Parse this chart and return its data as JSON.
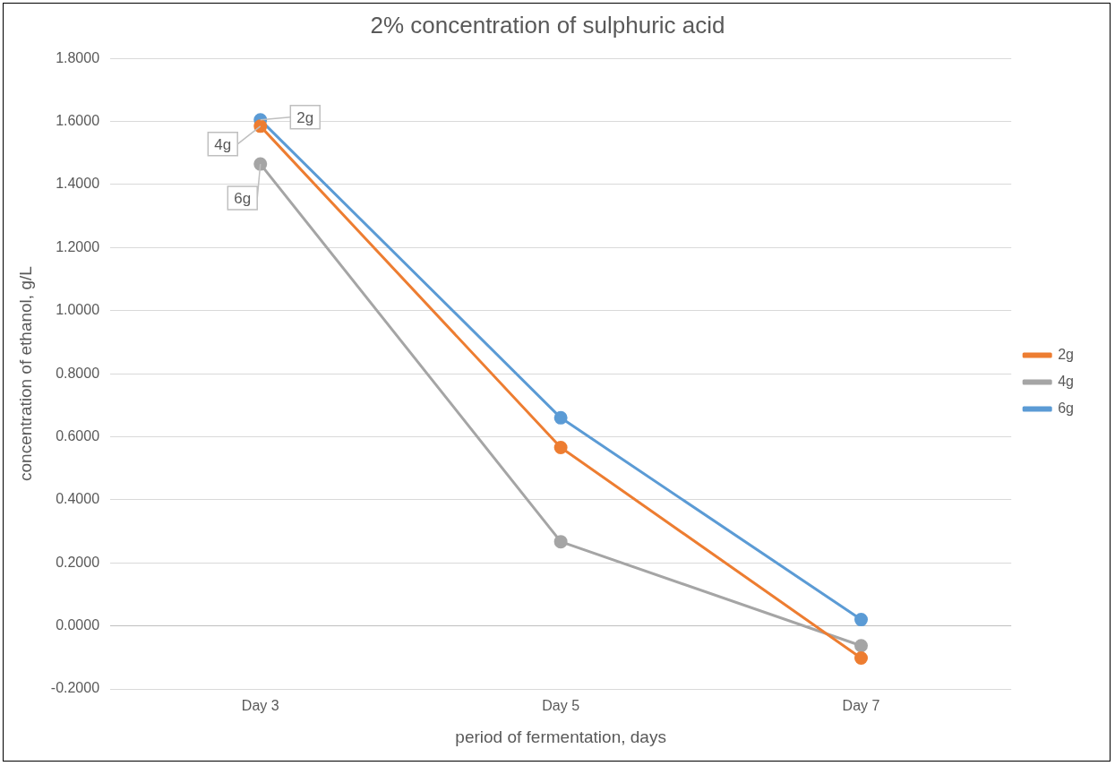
{
  "chart_data": {
    "type": "line",
    "title": "2% concentration of sulphuric acid",
    "xlabel": "period of fermentation, days",
    "ylabel": "concentration of ethanol, g/L",
    "categories": [
      "Day 3",
      "Day 5",
      "Day 7"
    ],
    "series": [
      {
        "name": "2g",
        "color": "#ed7d31",
        "values": [
          1.585,
          0.566,
          -0.102
        ]
      },
      {
        "name": "4g",
        "color": "#a5a5a5",
        "values": [
          1.465,
          0.267,
          -0.063
        ]
      },
      {
        "name": "6g",
        "color": "#5b9bd5",
        "values": [
          1.605,
          0.66,
          0.02
        ]
      }
    ],
    "annotations": [
      {
        "text": "2g",
        "x": "Day 3",
        "y": 1.605
      },
      {
        "text": "4g",
        "x": "Day 3",
        "y": 1.585
      },
      {
        "text": "6g",
        "x": "Day 3",
        "y": 1.465
      }
    ],
    "ylim": [
      -0.2,
      1.8
    ],
    "yticks": [
      {
        "value": -0.2,
        "label": "-0.2000"
      },
      {
        "value": 0,
        "label": "0.0000"
      },
      {
        "value": 0.2,
        "label": "0.2000"
      },
      {
        "value": 0.4,
        "label": "0.4000"
      },
      {
        "value": 0.6,
        "label": "0.6000"
      },
      {
        "value": 0.8,
        "label": "0.8000"
      },
      {
        "value": 1,
        "label": "1.0000"
      },
      {
        "value": 1.2,
        "label": "1.2000"
      },
      {
        "value": 1.4,
        "label": "1.4000"
      },
      {
        "value": 1.6,
        "label": "1.6000"
      },
      {
        "value": 1.8,
        "label": "1.8000"
      }
    ],
    "grid": "y",
    "legend": "right",
    "marker": "circle",
    "line_style": "solid"
  }
}
